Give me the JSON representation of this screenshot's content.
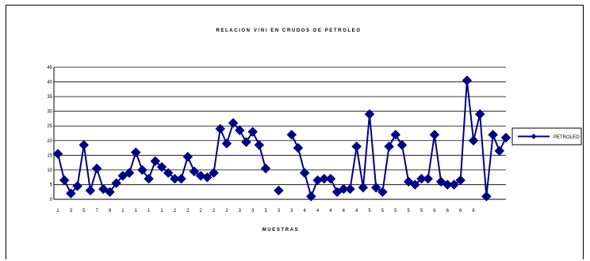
{
  "chart_data": {
    "type": "line",
    "title": "RELACION V/Ni EN CRUDOS DE PETROLEO",
    "xlabel": "MUESTRAS",
    "ylabel": "",
    "ylim": [
      0,
      45
    ],
    "y_ticks": [
      "0",
      "5",
      "10",
      "15",
      "20",
      "25",
      "30",
      "35",
      "40",
      "45"
    ],
    "x_tick_labels": [
      "1",
      "3",
      "5",
      "7",
      "9",
      "1",
      "1",
      "1",
      "1",
      "2",
      "2",
      "2",
      "2",
      "2",
      "3",
      "3",
      "3",
      "3",
      "3",
      "4",
      "4",
      "4",
      "4",
      "4",
      "5",
      "5",
      "5",
      "5",
      "5",
      "6",
      "6",
      "6",
      "6"
    ],
    "grid": true,
    "legend_position": "right",
    "series": [
      {
        "name": "PETROLEO",
        "color": "#000080",
        "values": [
          15.5,
          6.5,
          2,
          4.5,
          18.5,
          3,
          10.5,
          3.5,
          2.5,
          5.5,
          8,
          9,
          16,
          10,
          7,
          13,
          11,
          9,
          7,
          7,
          14.5,
          9.5,
          8,
          7.5,
          9,
          24,
          19,
          26,
          23.5,
          19.5,
          23,
          18.5,
          10.5,
          null,
          3,
          null,
          22,
          17.5,
          9,
          1,
          6.5,
          7,
          7,
          2.5,
          3.5,
          3.5,
          18,
          4,
          29,
          4,
          2.5,
          18,
          22,
          18.5,
          6,
          5,
          7,
          7,
          22,
          6,
          5,
          5,
          6.5,
          40.5,
          20,
          29,
          1,
          22,
          16.5,
          21
        ]
      }
    ]
  }
}
